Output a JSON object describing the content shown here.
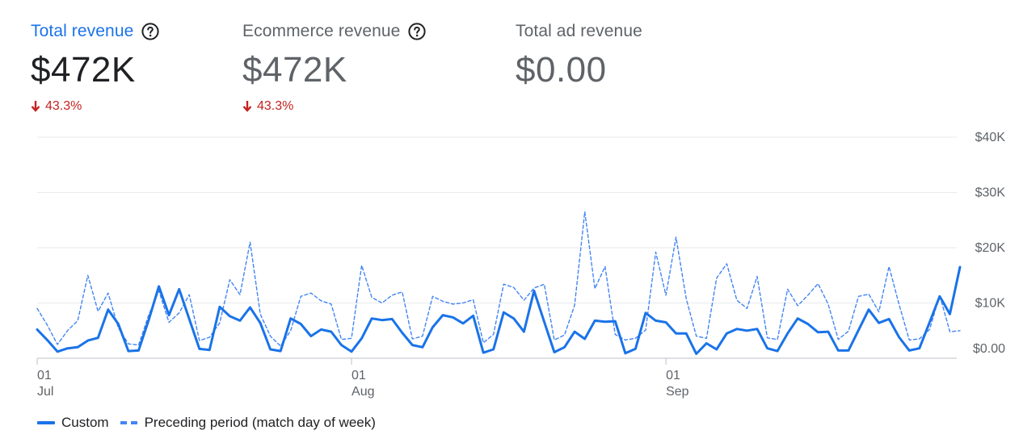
{
  "metrics": [
    {
      "title": "Total revenue",
      "value": "$472K",
      "delta": "43.3%",
      "help": true,
      "active": true
    },
    {
      "title": "Ecommerce revenue",
      "value": "$472K",
      "delta": "43.3%",
      "help": true,
      "active": false
    },
    {
      "title": "Total ad revenue",
      "value": "$0.00",
      "delta": "",
      "help": false,
      "active": false
    }
  ],
  "chart_data": {
    "type": "line",
    "y_ticks": [
      {
        "value": 0,
        "label": "$0.00"
      },
      {
        "value": 10000,
        "label": "$10K"
      },
      {
        "value": 20000,
        "label": "$20K"
      },
      {
        "value": 30000,
        "label": "$30K"
      },
      {
        "value": 40000,
        "label": "$40K"
      }
    ],
    "ylim": [
      0,
      40000
    ],
    "x_ticks": [
      {
        "index": 0,
        "day": "01",
        "month": "Jul"
      },
      {
        "index": 31,
        "day": "01",
        "month": "Aug"
      },
      {
        "index": 62,
        "day": "01",
        "month": "Sep"
      }
    ],
    "grid": true,
    "legend_position": "bottom-left",
    "colors": {
      "custom": "#1a73e8",
      "preceding": "#4285f4"
    },
    "series": [
      {
        "name": "Custom",
        "style": "solid",
        "values": [
          5200,
          3300,
          1200,
          1800,
          2000,
          3200,
          3700,
          8800,
          6200,
          1300,
          1400,
          6900,
          13000,
          7800,
          12500,
          7100,
          1700,
          1500,
          9300,
          7600,
          6800,
          9200,
          6400,
          1600,
          1300,
          7200,
          6200,
          4000,
          5200,
          4800,
          2400,
          1200,
          3600,
          7200,
          6900,
          7100,
          4600,
          2400,
          2000,
          5600,
          7800,
          7400,
          6300,
          7700,
          1000,
          1600,
          8300,
          7200,
          4800,
          12200,
          6600,
          1100,
          2000,
          4800,
          3500,
          6800,
          6600,
          6700,
          900,
          1700,
          8200,
          6800,
          6500,
          4500,
          4500,
          800,
          2700,
          1600,
          4500,
          5300,
          5000,
          5300,
          1800,
          1300,
          4500,
          7200,
          6200,
          4700,
          4800,
          1400,
          1400,
          5100,
          8800,
          6400,
          7100,
          3800,
          1400,
          1800,
          6500,
          11200,
          8000,
          16500
        ]
      },
      {
        "name": "Preceding period (match day of week)",
        "style": "dashed",
        "values": [
          9000,
          6000,
          2500,
          5000,
          6800,
          15000,
          8500,
          11800,
          5500,
          2600,
          2400,
          7800,
          12200,
          6500,
          8200,
          11500,
          3200,
          3800,
          6400,
          14200,
          11500,
          21000,
          8000,
          4000,
          2200,
          5000,
          11200,
          11800,
          10400,
          9800,
          3400,
          3600,
          16800,
          11000,
          10000,
          11400,
          12000,
          3500,
          4000,
          11200,
          10300,
          9800,
          10000,
          10600,
          2800,
          4300,
          13400,
          12800,
          10500,
          12700,
          13400,
          3300,
          4200,
          9600,
          26500,
          12600,
          16600,
          4300,
          3300,
          3600,
          5100,
          19200,
          11400,
          21900,
          10800,
          4000,
          3600,
          14500,
          17100,
          10500,
          9000,
          14800,
          3700,
          3400,
          12500,
          9500,
          11400,
          13500,
          9800,
          3400,
          4900,
          11200,
          11600,
          8400,
          16600,
          9700,
          3300,
          3500,
          5200,
          11400,
          4800,
          5000
        ]
      }
    ]
  },
  "legend": [
    {
      "label": "Custom",
      "style": "solid"
    },
    {
      "label": "Preceding period (match day of week)",
      "style": "dashed"
    }
  ]
}
